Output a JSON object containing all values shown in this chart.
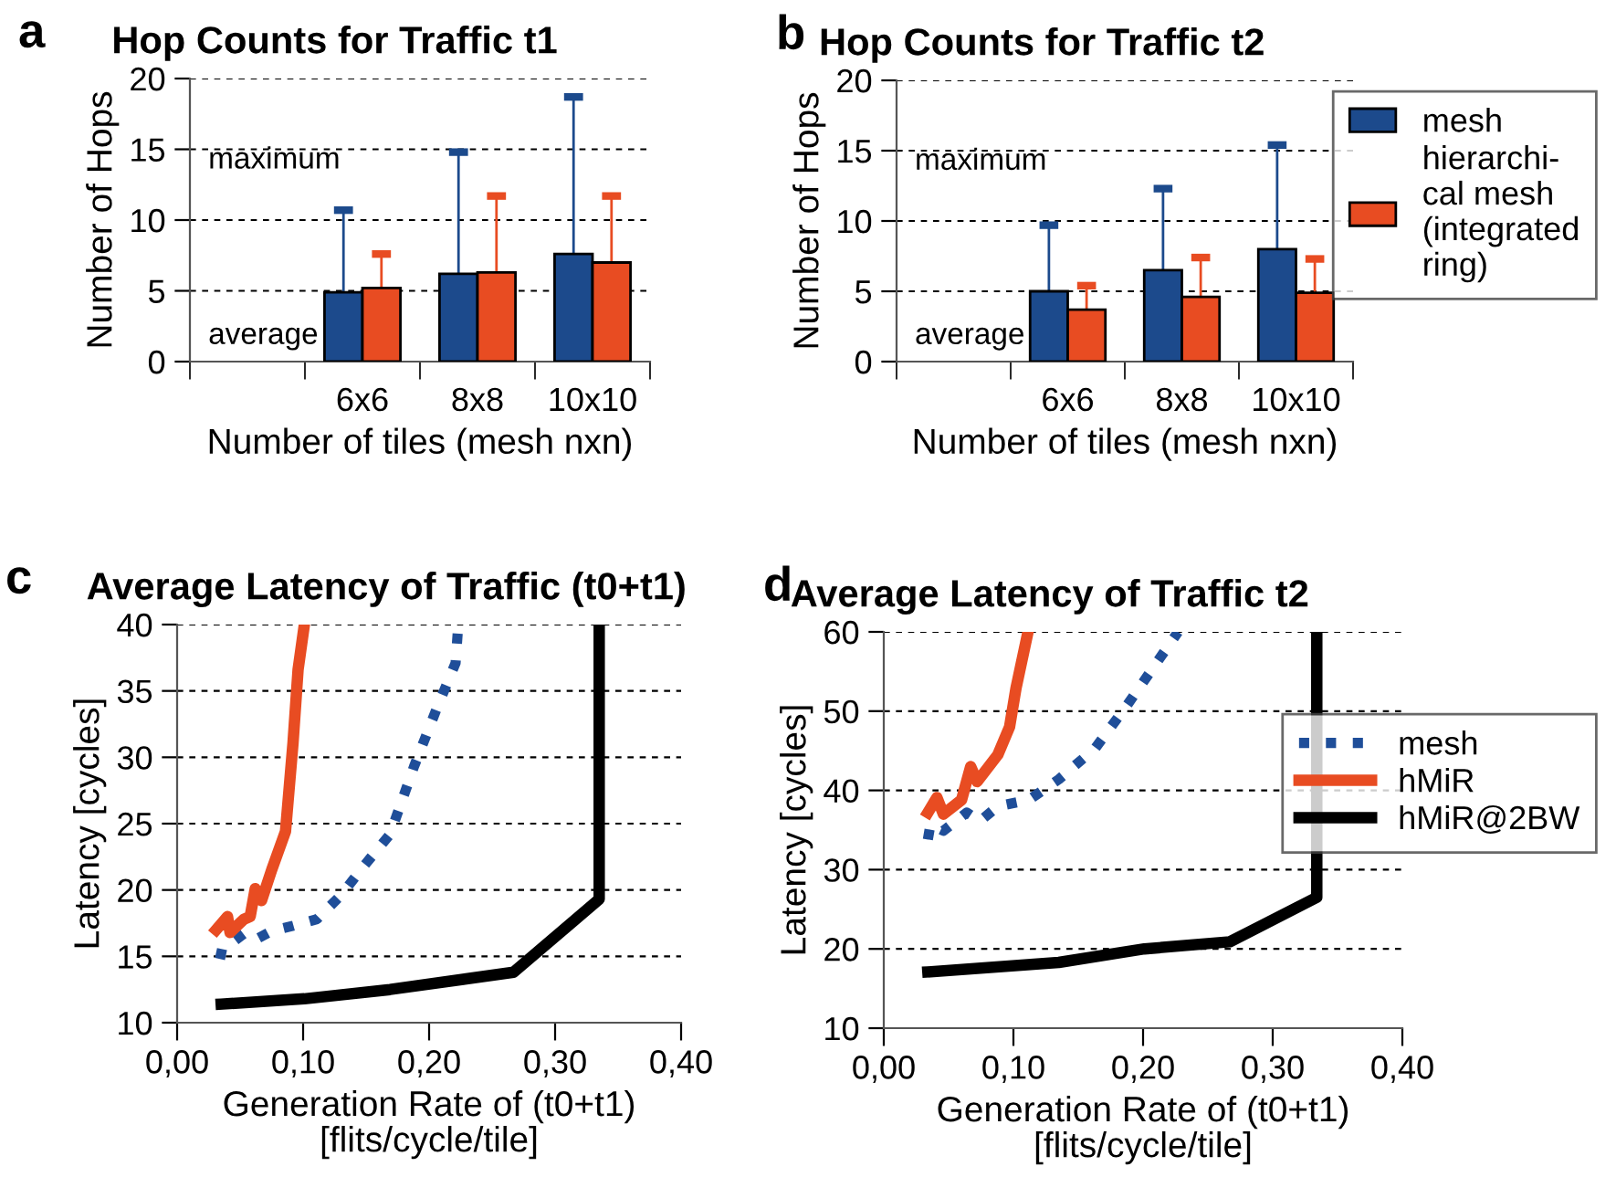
{
  "chart_data": [
    {
      "type": "bar",
      "title": "Hop Counts for Traffic t1",
      "xlabel": "Number of tiles (mesh nxn)",
      "ylabel": "Number of Hops",
      "categories": [
        null,
        "6x6",
        "8x8",
        "10x10"
      ],
      "series": [
        {
          "color": "#1c4a8c",
          "values": [
            null,
            4.9,
            6.2,
            7.6
          ],
          "errors": [
            null,
            [
              4.9,
              10.7
            ],
            [
              6.2,
              14.8
            ],
            [
              7.6,
              18.7
            ]
          ]
        },
        {
          "color": "#e84c22",
          "values": [
            null,
            5.2,
            6.3,
            7.0
          ],
          "errors": [
            null,
            [
              5.2,
              7.6
            ],
            [
              6.3,
              11.7
            ],
            [
              7.0,
              11.7
            ]
          ]
        }
      ],
      "ylim": [
        0,
        20
      ],
      "yticks": [
        0,
        5,
        10,
        15,
        20
      ],
      "grid": "y",
      "annotations": [
        "a",
        "maximum",
        "average"
      ]
    },
    {
      "type": "bar",
      "title": "Hop Counts for Traffic t2",
      "xlabel": "Number of tiles (mesh nxn)",
      "ylabel": "Number of Hops",
      "categories": [
        null,
        "6x6",
        "8x8",
        "10x10"
      ],
      "series": [
        {
          "name": "mesh",
          "color": "#1c4a8c",
          "values": [
            null,
            5.0,
            6.5,
            8.0
          ],
          "errors": [
            null,
            [
              5.0,
              9.7
            ],
            [
              6.5,
              12.3
            ],
            [
              8.0,
              15.4
            ]
          ]
        },
        {
          "name": "hierarchi-\ncal mesh\n(integrated\nring)",
          "color": "#e84c22",
          "values": [
            null,
            3.7,
            4.6,
            4.9
          ],
          "errors": [
            null,
            [
              3.7,
              5.4
            ],
            [
              4.6,
              7.4
            ],
            [
              4.9,
              7.3
            ]
          ]
        }
      ],
      "ylim": [
        0,
        20
      ],
      "yticks": [
        0,
        5,
        10,
        15,
        20
      ],
      "grid": "y",
      "legend": "right",
      "annotations": [
        "b",
        "maximum",
        "average"
      ]
    },
    {
      "type": "line",
      "title": "Average Latency of Traffic (t0+t1)",
      "xlabel": "Generation Rate of (t0+t1)\n[flits/cycle/tile]",
      "ylabel": "Latency [cycles]",
      "series": [
        {
          "color": "#1f4e99",
          "line_style": "dotted",
          "x": [
            0.034,
            0.036,
            0.046,
            0.053,
            0.063,
            0.075,
            0.092,
            0.111,
            0.13,
            0.149,
            0.169,
            0.188,
            0.207,
            0.221,
            0.223
          ],
          "values": [
            14.8,
            15.7,
            16.2,
            16.7,
            16.3,
            16.9,
            17.3,
            17.8,
            19.6,
            21.9,
            24.2,
            29.3,
            33.9,
            37.1,
            39.8
          ]
        },
        {
          "color": "#e84c22",
          "line_style": "solid",
          "x": [
            0.031,
            0.04,
            0.042,
            0.053,
            0.058,
            0.062,
            0.067,
            0.075,
            0.086,
            0.092,
            0.096,
            0.101
          ],
          "values": [
            17.0,
            18.0,
            16.8,
            17.8,
            18.0,
            20.1,
            19.2,
            21.5,
            24.4,
            31.1,
            36.6,
            40
          ]
        },
        {
          "color": "#000000",
          "line_style": "solid",
          "x": [
            0.035,
            0.101,
            0.169,
            0.267,
            0.335,
            0.335
          ],
          "values": [
            11.4,
            11.8,
            12.5,
            13.8,
            19.3,
            40
          ]
        }
      ],
      "xlim": [
        0,
        0.4
      ],
      "xticks": [
        {
          "value": 0,
          "label": "0,00"
        },
        {
          "value": 0.1,
          "label": "0,10"
        },
        {
          "value": 0.2,
          "label": "0,20"
        },
        {
          "value": 0.3,
          "label": "0,30"
        },
        {
          "value": 0.4,
          "label": "0,40"
        }
      ],
      "ylim": [
        10,
        40
      ],
      "yticks": [
        10,
        15,
        20,
        25,
        30,
        35,
        40
      ],
      "grid": "y",
      "annotations": [
        "c"
      ]
    },
    {
      "type": "line",
      "title": "Average Latency of Traffic t2",
      "xlabel": "Generation Rate of (t0+t1)\n[flits/cycle/tile]",
      "ylabel": "Latency [cycles]",
      "series": [
        {
          "name": "mesh",
          "color": "#1f4e99",
          "line_style": "dotted",
          "x": [
            0.034,
            0.036,
            0.046,
            0.064,
            0.074,
            0.088,
            0.112,
            0.135,
            0.163,
            0.187,
            0.21,
            0.227
          ],
          "values": [
            33.8,
            35.7,
            34.9,
            37.2,
            36.1,
            38.0,
            38.8,
            41.4,
            45.3,
            50.6,
            56.0,
            60
          ]
        },
        {
          "name": "hMiR",
          "color": "#e84c22",
          "line_style": "solid",
          "x": [
            0.034,
            0.041,
            0.046,
            0.06,
            0.067,
            0.072,
            0.088,
            0.097,
            0.102,
            0.111
          ],
          "values": [
            37.2,
            39.1,
            37.0,
            38.8,
            43.0,
            41.1,
            44.5,
            48.0,
            52.9,
            59.8
          ]
        },
        {
          "name": "hMiR@2BW",
          "color": "#000000",
          "line_style": "solid",
          "x": [
            0.034,
            0.135,
            0.201,
            0.267,
            0.334,
            0.334
          ],
          "values": [
            17.1,
            18.3,
            20.0,
            20.9,
            26.5,
            60
          ]
        }
      ],
      "xlim": [
        0,
        0.4
      ],
      "xticks": [
        {
          "value": 0,
          "label": "0,00"
        },
        {
          "value": 0.1,
          "label": "0,10"
        },
        {
          "value": 0.2,
          "label": "0,20"
        },
        {
          "value": 0.3,
          "label": "0,30"
        },
        {
          "value": 0.4,
          "label": "0,40"
        }
      ],
      "ylim": [
        10,
        60
      ],
      "yticks": [
        10,
        20,
        30,
        40,
        50,
        60
      ],
      "grid": "y",
      "legend": "right",
      "annotations": [
        "d"
      ]
    }
  ]
}
